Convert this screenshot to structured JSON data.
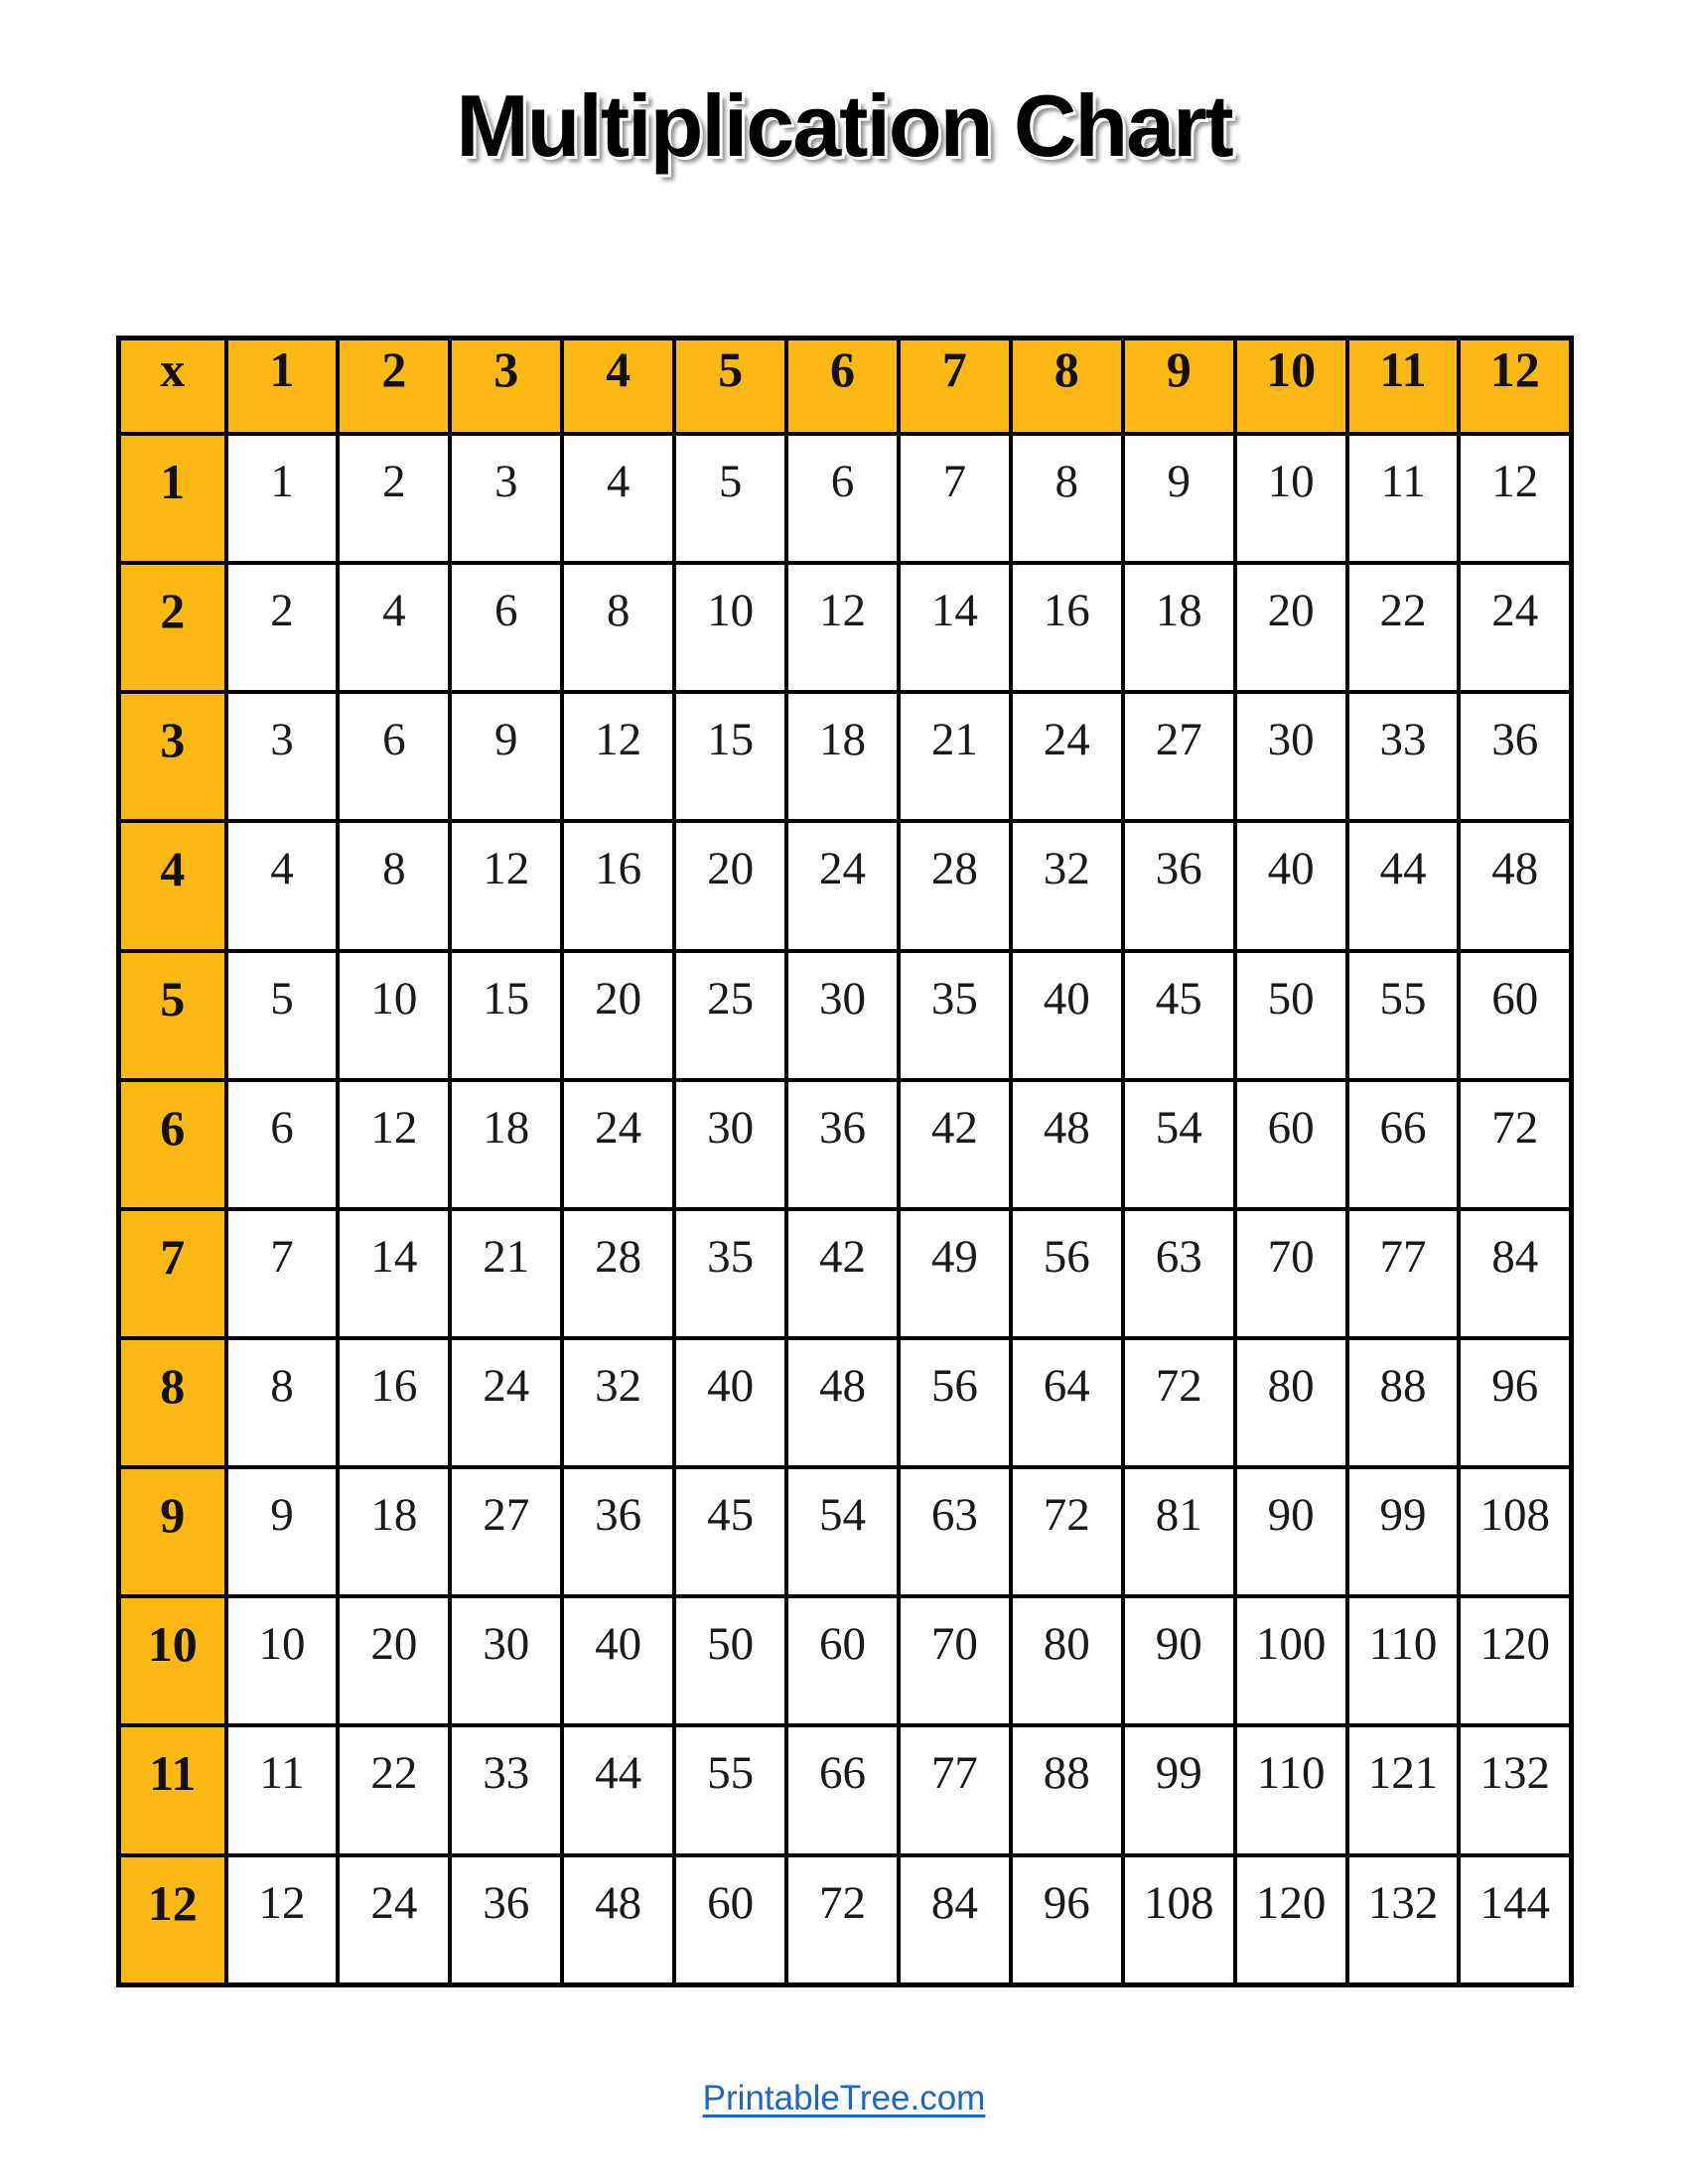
{
  "page": {
    "title": "Multiplication Chart",
    "footer_link": "PrintableTree.com"
  },
  "colors": {
    "header_fill": "#FCB813",
    "grid_border": "#000000",
    "link_blue": "#1B66C8",
    "title_text": "#000000"
  },
  "table": {
    "corner_label": "x",
    "column_headers": [
      "1",
      "2",
      "3",
      "4",
      "5",
      "6",
      "7",
      "8",
      "9",
      "10",
      "11",
      "12"
    ],
    "rows": [
      {
        "header": "1",
        "cells": [
          "1",
          "2",
          "3",
          "4",
          "5",
          "6",
          "7",
          "8",
          "9",
          "10",
          "11",
          "12"
        ]
      },
      {
        "header": "2",
        "cells": [
          "2",
          "4",
          "6",
          "8",
          "10",
          "12",
          "14",
          "16",
          "18",
          "20",
          "22",
          "24"
        ]
      },
      {
        "header": "3",
        "cells": [
          "3",
          "6",
          "9",
          "12",
          "15",
          "18",
          "21",
          "24",
          "27",
          "30",
          "33",
          "36"
        ]
      },
      {
        "header": "4",
        "cells": [
          "4",
          "8",
          "12",
          "16",
          "20",
          "24",
          "28",
          "32",
          "36",
          "40",
          "44",
          "48"
        ]
      },
      {
        "header": "5",
        "cells": [
          "5",
          "10",
          "15",
          "20",
          "25",
          "30",
          "35",
          "40",
          "45",
          "50",
          "55",
          "60"
        ]
      },
      {
        "header": "6",
        "cells": [
          "6",
          "12",
          "18",
          "24",
          "30",
          "36",
          "42",
          "48",
          "54",
          "60",
          "66",
          "72"
        ]
      },
      {
        "header": "7",
        "cells": [
          "7",
          "14",
          "21",
          "28",
          "35",
          "42",
          "49",
          "56",
          "63",
          "70",
          "77",
          "84"
        ]
      },
      {
        "header": "8",
        "cells": [
          "8",
          "16",
          "24",
          "32",
          "40",
          "48",
          "56",
          "64",
          "72",
          "80",
          "88",
          "96"
        ]
      },
      {
        "header": "9",
        "cells": [
          "9",
          "18",
          "27",
          "36",
          "45",
          "54",
          "63",
          "72",
          "81",
          "90",
          "99",
          "108"
        ]
      },
      {
        "header": "10",
        "cells": [
          "10",
          "20",
          "30",
          "40",
          "50",
          "60",
          "70",
          "80",
          "90",
          "100",
          "110",
          "120"
        ]
      },
      {
        "header": "11",
        "cells": [
          "11",
          "22",
          "33",
          "44",
          "55",
          "66",
          "77",
          "88",
          "99",
          "110",
          "121",
          "132"
        ]
      },
      {
        "header": "12",
        "cells": [
          "12",
          "24",
          "36",
          "48",
          "60",
          "72",
          "84",
          "96",
          "108",
          "120",
          "132",
          "144"
        ]
      }
    ]
  }
}
